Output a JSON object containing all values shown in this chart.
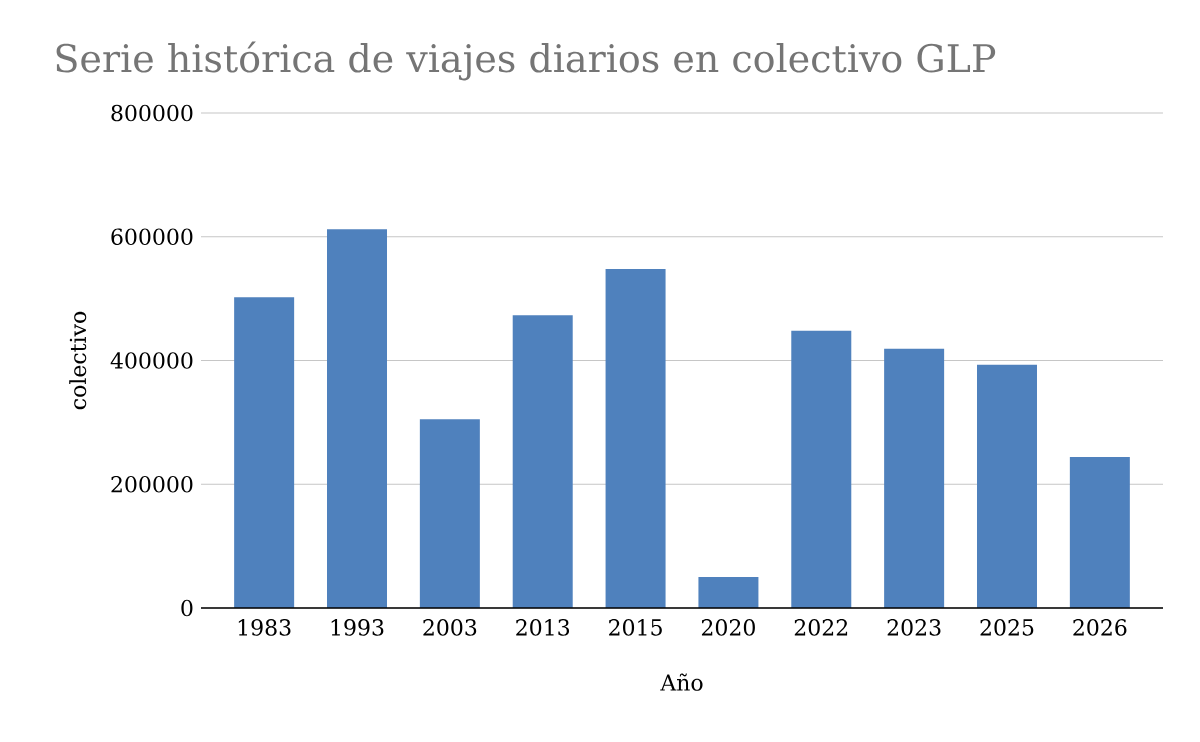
{
  "chart_data": {
    "type": "bar",
    "title": "Serie histórica de viajes diarios en colectivo GLP",
    "xlabel": "Año",
    "ylabel": "colectivo",
    "categories": [
      "1983",
      "1993",
      "2003",
      "2013",
      "2015",
      "2020",
      "2022",
      "2023",
      "2025",
      "2026"
    ],
    "values": [
      502000,
      612000,
      305000,
      473000,
      548000,
      50000,
      448000,
      419000,
      393000,
      244000
    ],
    "color": "#4f81bd",
    "ylim": [
      0,
      800000
    ],
    "yticks": [
      0,
      200000,
      400000,
      600000,
      800000
    ],
    "grid": "y"
  }
}
